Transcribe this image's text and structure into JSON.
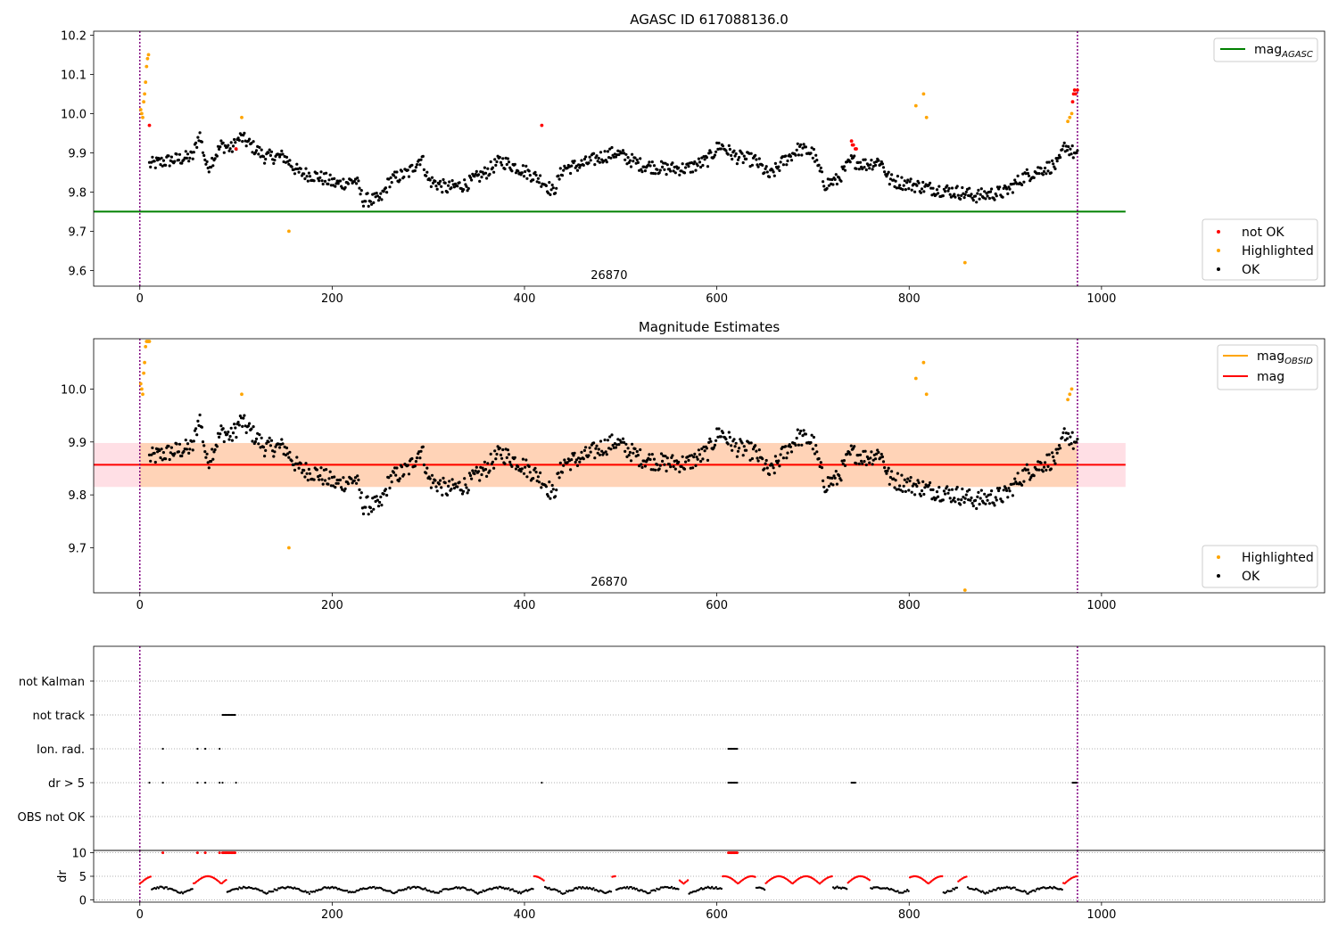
{
  "chart_data": [
    {
      "type": "scatter",
      "title": "AGASC ID 617088136.0",
      "annotation": "26870",
      "xlim": [
        -48,
        1232
      ],
      "ylim": [
        9.56,
        10.21
      ],
      "xticks": [
        0,
        200,
        400,
        600,
        800,
        1000
      ],
      "yticks": [
        9.6,
        9.7,
        9.8,
        9.9,
        10.0,
        10.1,
        10.2
      ],
      "vlines": [
        0,
        975
      ],
      "hline": {
        "name": "mag_AGASC",
        "label": "mag",
        "subscript": "AGASC",
        "value": 9.75,
        "x": [
          -48,
          1025
        ],
        "color": "#008000"
      },
      "legend_upper": {
        "position": "upper right",
        "entries": [
          {
            "label": "mag",
            "subscript": "AGASC",
            "color": "#008000"
          }
        ]
      },
      "legend_lower": {
        "position": "lower right",
        "entries": [
          {
            "label": "not OK",
            "color": "#ff0000"
          },
          {
            "label": "Highlighted",
            "color": "#ffa500"
          },
          {
            "label": "OK",
            "color": "#000000"
          }
        ]
      },
      "series": [
        {
          "name": "not OK",
          "color": "#ff0000",
          "points": [
            [
              10,
              9.97
            ],
            [
              100,
              9.91
            ],
            [
              418,
              9.97
            ],
            [
              740,
              9.93
            ],
            [
              741,
              9.92
            ],
            [
              742,
              9.92
            ],
            [
              744,
              9.91
            ],
            [
              745,
              9.91
            ],
            [
              970,
              10.03
            ],
            [
              971,
              10.05
            ],
            [
              972,
              10.06
            ],
            [
              973,
              10.05
            ],
            [
              975,
              10.06
            ]
          ]
        },
        {
          "name": "Highlighted",
          "color": "#ffa500",
          "points": [
            [
              1,
              10.01
            ],
            [
              2,
              10.0
            ],
            [
              3,
              9.99
            ],
            [
              4,
              10.03
            ],
            [
              5,
              10.05
            ],
            [
              6,
              10.08
            ],
            [
              7,
              10.12
            ],
            [
              8,
              10.14
            ],
            [
              9,
              10.15
            ],
            [
              106,
              9.99
            ],
            [
              155,
              9.7
            ],
            [
              807,
              10.02
            ],
            [
              815,
              10.05
            ],
            [
              818,
              9.99
            ],
            [
              858,
              9.62
            ],
            [
              965,
              9.98
            ],
            [
              967,
              9.99
            ],
            [
              969,
              10.0
            ]
          ]
        },
        {
          "name": "OK",
          "color": "#000000",
          "anchors": [
            [
              10,
              9.87
            ],
            [
              30,
              9.88
            ],
            [
              55,
              9.89
            ],
            [
              62,
              9.95
            ],
            [
              70,
              9.86
            ],
            [
              80,
              9.9
            ],
            [
              85,
              9.92
            ],
            [
              95,
              9.91
            ],
            [
              105,
              9.94
            ],
            [
              115,
              9.92
            ],
            [
              130,
              9.89
            ],
            [
              150,
              9.89
            ],
            [
              165,
              9.85
            ],
            [
              185,
              9.84
            ],
            [
              205,
              9.82
            ],
            [
              225,
              9.83
            ],
            [
              232,
              9.78
            ],
            [
              250,
              9.78
            ],
            [
              260,
              9.83
            ],
            [
              280,
              9.85
            ],
            [
              293,
              9.89
            ],
            [
              300,
              9.83
            ],
            [
              320,
              9.81
            ],
            [
              340,
              9.82
            ],
            [
              360,
              9.85
            ],
            [
              375,
              9.88
            ],
            [
              395,
              9.86
            ],
            [
              418,
              9.83
            ],
            [
              430,
              9.8
            ],
            [
              440,
              9.86
            ],
            [
              460,
              9.87
            ],
            [
              480,
              9.89
            ],
            [
              495,
              9.9
            ],
            [
              520,
              9.87
            ],
            [
              545,
              9.86
            ],
            [
              570,
              9.86
            ],
            [
              590,
              9.88
            ],
            [
              603,
              9.92
            ],
            [
              620,
              9.89
            ],
            [
              640,
              9.88
            ],
            [
              655,
              9.84
            ],
            [
              670,
              9.88
            ],
            [
              685,
              9.91
            ],
            [
              700,
              9.9
            ],
            [
              712,
              9.82
            ],
            [
              725,
              9.83
            ],
            [
              740,
              9.88
            ],
            [
              755,
              9.87
            ],
            [
              770,
              9.88
            ],
            [
              780,
              9.83
            ],
            [
              800,
              9.82
            ],
            [
              820,
              9.81
            ],
            [
              850,
              9.8
            ],
            [
              870,
              9.79
            ],
            [
              900,
              9.8
            ],
            [
              920,
              9.84
            ],
            [
              940,
              9.86
            ],
            [
              955,
              9.87
            ],
            [
              962,
              9.92
            ],
            [
              975,
              9.89
            ]
          ]
        }
      ]
    },
    {
      "type": "scatter",
      "title": "Magnitude Estimates",
      "annotation": "26870",
      "xlim": [
        -48,
        1232
      ],
      "ylim": [
        9.615,
        10.095
      ],
      "xticks": [
        0,
        200,
        400,
        600,
        800,
        1000
      ],
      "yticks": [
        9.7,
        9.8,
        9.9,
        10.0
      ],
      "vlines": [
        0,
        975
      ],
      "mag_line": {
        "name": "mag",
        "value": 9.857,
        "x": [
          -48,
          1025
        ],
        "color": "#ff0000"
      },
      "mag_band": {
        "low": 9.815,
        "high": 9.898,
        "x": [
          -48,
          1025
        ],
        "color": "#ffc0cb"
      },
      "mag_obsid": {
        "name": "mag_OBSID",
        "value": 9.857,
        "low": 9.815,
        "high": 9.898,
        "x": [
          0,
          975
        ],
        "color": "#ffa500"
      },
      "legend_upper": {
        "position": "upper right",
        "entries": [
          {
            "label": "mag",
            "subscript": "OBSID",
            "color": "#ffa500"
          },
          {
            "label": "mag",
            "color": "#ff0000"
          }
        ]
      },
      "legend_lower": {
        "position": "lower right",
        "entries": [
          {
            "label": "Highlighted",
            "color": "#ffa500"
          },
          {
            "label": "OK",
            "color": "#000000"
          }
        ]
      },
      "series": [
        {
          "name": "Highlighted",
          "color": "#ffa500",
          "points": [
            [
              1,
              10.01
            ],
            [
              2,
              10.0
            ],
            [
              3,
              9.99
            ],
            [
              4,
              10.03
            ],
            [
              5,
              10.05
            ],
            [
              6,
              10.08
            ],
            [
              7,
              10.09
            ],
            [
              8,
              10.09
            ],
            [
              9,
              10.09
            ],
            [
              10,
              10.09
            ],
            [
              106,
              9.99
            ],
            [
              155,
              9.7
            ],
            [
              807,
              10.02
            ],
            [
              815,
              10.05
            ],
            [
              818,
              9.99
            ],
            [
              858,
              9.62
            ],
            [
              965,
              9.98
            ],
            [
              967,
              9.99
            ],
            [
              969,
              10.0
            ]
          ]
        },
        {
          "name": "OK",
          "color": "#000000",
          "same_as": "panel 1 OK"
        }
      ]
    },
    {
      "type": "scatter",
      "title": "",
      "xlim": [
        -48,
        1232
      ],
      "categories": [
        "OBS not OK",
        "dr > 5",
        "Ion. rad.",
        "not track",
        "not Kalman"
      ],
      "vlines": [
        0,
        975
      ],
      "flags": {
        "not track": [
          [
            86,
            100
          ]
        ],
        "Ion. rad.": [
          [
            24,
            24
          ],
          [
            60,
            60
          ],
          [
            68,
            68
          ],
          [
            83,
            83
          ],
          [
            612,
            622
          ]
        ],
        "dr > 5": [
          [
            10,
            10
          ],
          [
            24,
            24
          ],
          [
            60,
            60
          ],
          [
            68,
            68
          ],
          [
            83,
            83
          ],
          [
            86,
            86
          ],
          [
            100,
            100
          ],
          [
            418,
            418
          ],
          [
            612,
            622
          ],
          [
            740,
            745
          ],
          [
            970,
            975
          ]
        ]
      }
    },
    {
      "type": "scatter",
      "ylabel": "dr",
      "xlim": [
        -48,
        1232
      ],
      "ylim": [
        -0.5,
        10.5
      ],
      "xticks": [
        0,
        200,
        400,
        600,
        800,
        1000
      ],
      "yticks": [
        0,
        5,
        10
      ],
      "clip": 10,
      "threshold": 5,
      "vlines": [
        0,
        975
      ],
      "series": [
        {
          "name": "dr > threshold",
          "color": "#ff0000"
        },
        {
          "name": "dr",
          "color": "#000000"
        }
      ]
    }
  ]
}
